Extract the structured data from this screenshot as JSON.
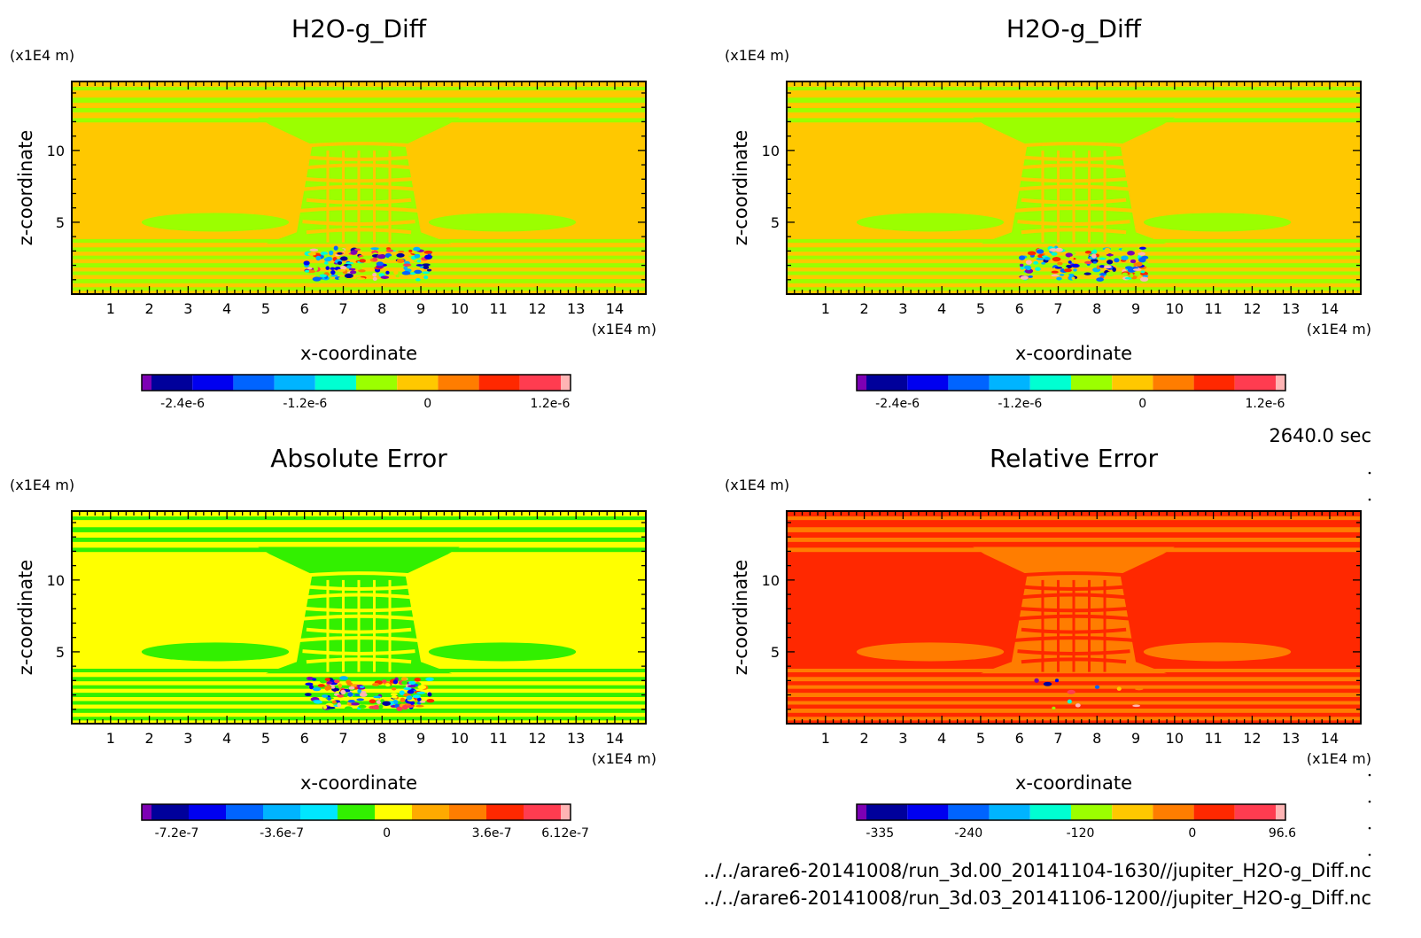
{
  "time_label": "2640.0 sec",
  "files": [
    "../../arare6-20141008/run_3d.00_20141104-1630//jupiter_H2O-g_Diff.nc",
    "../../arare6-20141008/run_3d.03_20141106-1200//jupiter_H2O-g_Diff.nc"
  ],
  "chart_data": [
    {
      "type": "heatmap",
      "title": "H2O-g_Diff",
      "xlabel": "x-coordinate",
      "ylabel": "z-coordinate",
      "xunit": "(x1E4 m)",
      "yunit": "(x1E4 m)",
      "xlim": [
        0,
        14.8
      ],
      "ylim": [
        0,
        14.8
      ],
      "xticks": [
        "1",
        "2",
        "3",
        "4",
        "5",
        "6",
        "7",
        "8",
        "9",
        "10",
        "11",
        "12",
        "13",
        "14"
      ],
      "yticks": [
        "5",
        "10"
      ],
      "palette": [
        "#7d00b4",
        "#00009b",
        "#0000f0",
        "#0064ff",
        "#00b4ff",
        "#00ffd2",
        "#9bff00",
        "#ffc800",
        "#ff7d00",
        "#ff2800",
        "#ff3c50",
        "#ffb4b4"
      ],
      "background_level": 7,
      "structure_level": 6,
      "colorbar": {
        "labels": [
          "-2.4e-6",
          "-1.2e-6",
          "0",
          "1.2e-6"
        ],
        "label_positions": [
          -2.4e-06,
          -1.2e-06,
          0,
          1.2e-06
        ],
        "range": [
          -2.8e-06,
          1.4e-06
        ]
      }
    },
    {
      "type": "heatmap",
      "title": "H2O-g_Diff",
      "xlabel": "x-coordinate",
      "ylabel": "z-coordinate",
      "xunit": "(x1E4 m)",
      "yunit": "(x1E4 m)",
      "xlim": [
        0,
        14.8
      ],
      "ylim": [
        0,
        14.8
      ],
      "xticks": [
        "1",
        "2",
        "3",
        "4",
        "5",
        "6",
        "7",
        "8",
        "9",
        "10",
        "11",
        "12",
        "13",
        "14"
      ],
      "yticks": [
        "5",
        "10"
      ],
      "palette": [
        "#7d00b4",
        "#00009b",
        "#0000f0",
        "#0064ff",
        "#00b4ff",
        "#00ffd2",
        "#9bff00",
        "#ffc800",
        "#ff7d00",
        "#ff2800",
        "#ff3c50",
        "#ffb4b4"
      ],
      "background_level": 7,
      "structure_level": 6,
      "colorbar": {
        "labels": [
          "-2.4e-6",
          "-1.2e-6",
          "0",
          "1.2e-6"
        ],
        "label_positions": [
          -2.4e-06,
          -1.2e-06,
          0,
          1.2e-06
        ],
        "range": [
          -2.8e-06,
          1.4e-06
        ]
      }
    },
    {
      "type": "heatmap",
      "title": "Absolute Error",
      "xlabel": "x-coordinate",
      "ylabel": "z-coordinate",
      "xunit": "(x1E4 m)",
      "yunit": "(x1E4 m)",
      "xlim": [
        0,
        14.8
      ],
      "ylim": [
        0,
        14.8
      ],
      "xticks": [
        "1",
        "2",
        "3",
        "4",
        "5",
        "6",
        "7",
        "8",
        "9",
        "10",
        "11",
        "12",
        "13",
        "14"
      ],
      "yticks": [
        "5",
        "10"
      ],
      "palette": [
        "#7d00b4",
        "#00009b",
        "#0000f0",
        "#0064ff",
        "#00b4ff",
        "#00e6ff",
        "#32f000",
        "#ffff00",
        "#ffaa00",
        "#ff7d00",
        "#ff2800",
        "#ff3c50",
        "#ffb4b4"
      ],
      "background_level": 7,
      "structure_level": 6,
      "colorbar": {
        "labels": [
          "-7.2e-7",
          "-3.6e-7",
          "0",
          "3.6e-7",
          "6.12e-7"
        ],
        "label_positions": [
          -7.2e-07,
          -3.6e-07,
          0,
          3.6e-07,
          6.12e-07
        ],
        "range": [
          -8.4e-07,
          6.3e-07
        ]
      }
    },
    {
      "type": "heatmap",
      "title": "Relative Error",
      "xlabel": "x-coordinate",
      "ylabel": "z-coordinate",
      "xunit": "(x1E4 m)",
      "yunit": "(x1E4 m)",
      "xlim": [
        0,
        14.8
      ],
      "ylim": [
        0,
        14.8
      ],
      "xticks": [
        "1",
        "2",
        "3",
        "4",
        "5",
        "6",
        "7",
        "8",
        "9",
        "10",
        "11",
        "12",
        "13",
        "14"
      ],
      "yticks": [
        "5",
        "10"
      ],
      "palette": [
        "#7d00b4",
        "#00009b",
        "#0000f0",
        "#0064ff",
        "#00b4ff",
        "#00ffd2",
        "#9bff00",
        "#ffc800",
        "#ff7d00",
        "#ff2800",
        "#ff3c50",
        "#ffb4b4"
      ],
      "background_level": 9,
      "structure_level": 8,
      "colorbar": {
        "labels": [
          "-335",
          "-240",
          "-120",
          "0",
          "96.6"
        ],
        "label_positions": [
          -335,
          -240,
          -120,
          0,
          96.6
        ],
        "range": [
          -360,
          100
        ]
      }
    }
  ]
}
